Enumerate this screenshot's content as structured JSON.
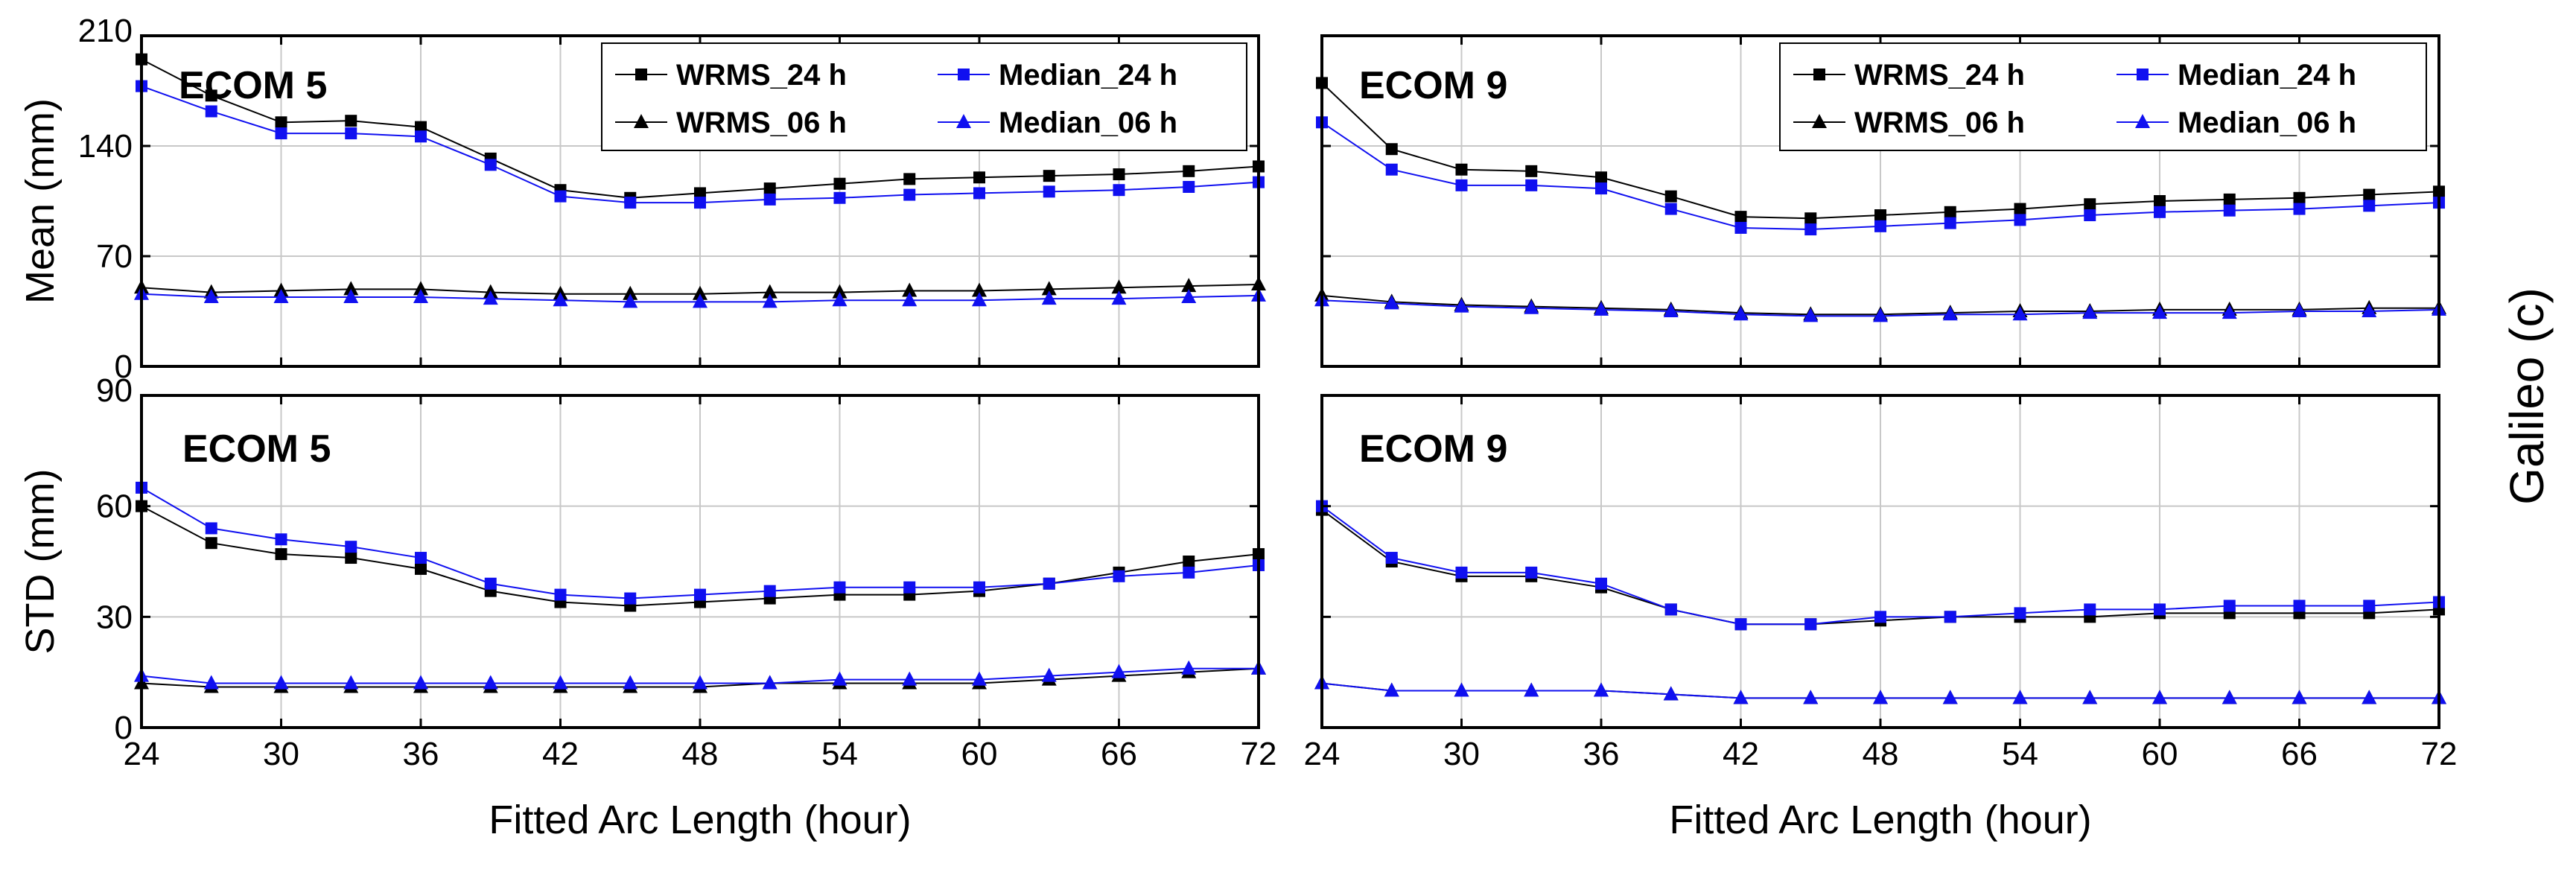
{
  "chart_data": [
    {
      "type": "line",
      "title": "ECOM 5",
      "xlabel": "",
      "ylabel": "Mean (mm)",
      "xlim": [
        24,
        72
      ],
      "ylim": [
        0,
        210
      ],
      "xticks": [
        24,
        30,
        36,
        42,
        48,
        54,
        60,
        66,
        72
      ],
      "yticks": [
        0,
        70,
        140,
        210
      ],
      "x": [
        24,
        27,
        30,
        33,
        36,
        39,
        42,
        45,
        48,
        51,
        54,
        57,
        60,
        63,
        66,
        69,
        72
      ],
      "series": [
        {
          "name": "WRMS_24 h",
          "color": "#000000",
          "marker": "square",
          "values": [
            195,
            172,
            155,
            156,
            152,
            132,
            112,
            107,
            110,
            113,
            116,
            119,
            120,
            121,
            122,
            124,
            127
          ]
        },
        {
          "name": "Median_24 h",
          "color": "#1010f0",
          "marker": "square",
          "values": [
            178,
            162,
            148,
            148,
            146,
            128,
            108,
            104,
            104,
            106,
            107,
            109,
            110,
            111,
            112,
            114,
            117
          ]
        },
        {
          "name": "WRMS_06 h",
          "color": "#000000",
          "marker": "triangle",
          "values": [
            50,
            47,
            48,
            49,
            49,
            47,
            46,
            46,
            46,
            47,
            47,
            48,
            48,
            49,
            50,
            51,
            52
          ]
        },
        {
          "name": "Median_06 h",
          "color": "#1010f0",
          "marker": "triangle",
          "values": [
            46,
            44,
            44,
            44,
            44,
            43,
            42,
            41,
            41,
            41,
            42,
            42,
            42,
            43,
            43,
            44,
            45
          ]
        }
      ]
    },
    {
      "type": "line",
      "title": "ECOM 9",
      "xlabel": "",
      "ylabel": "",
      "xlim": [
        24,
        72
      ],
      "ylim": [
        0,
        210
      ],
      "xticks": [
        24,
        30,
        36,
        42,
        48,
        54,
        60,
        66,
        72
      ],
      "yticks": [
        0,
        70,
        140,
        210
      ],
      "x": [
        24,
        27,
        30,
        33,
        36,
        39,
        42,
        45,
        48,
        51,
        54,
        57,
        60,
        63,
        66,
        69,
        72
      ],
      "series": [
        {
          "name": "WRMS_24 h",
          "color": "#000000",
          "marker": "square",
          "values": [
            180,
            138,
            125,
            124,
            120,
            108,
            95,
            94,
            96,
            98,
            100,
            103,
            105,
            106,
            107,
            109,
            111
          ]
        },
        {
          "name": "Median_24 h",
          "color": "#1010f0",
          "marker": "square",
          "values": [
            155,
            125,
            115,
            115,
            113,
            100,
            88,
            87,
            89,
            91,
            93,
            96,
            98,
            99,
            100,
            102,
            104
          ]
        },
        {
          "name": "WRMS_06 h",
          "color": "#000000",
          "marker": "triangle",
          "values": [
            45,
            41,
            39,
            38,
            37,
            36,
            34,
            33,
            33,
            34,
            35,
            35,
            36,
            36,
            36,
            37,
            37
          ]
        },
        {
          "name": "Median_06 h",
          "color": "#1010f0",
          "marker": "triangle",
          "values": [
            42,
            40,
            38,
            37,
            36,
            35,
            33,
            32,
            32,
            33,
            33,
            34,
            34,
            34,
            35,
            35,
            36
          ]
        }
      ]
    },
    {
      "type": "line",
      "title": "ECOM 5",
      "xlabel": "Fitted Arc Length (hour)",
      "ylabel": "STD (mm)",
      "xlim": [
        24,
        72
      ],
      "ylim": [
        0,
        90
      ],
      "xticks": [
        24,
        30,
        36,
        42,
        48,
        54,
        60,
        66,
        72
      ],
      "yticks": [
        0,
        30,
        60,
        90
      ],
      "x": [
        24,
        27,
        30,
        33,
        36,
        39,
        42,
        45,
        48,
        51,
        54,
        57,
        60,
        63,
        66,
        69,
        72
      ],
      "series": [
        {
          "name": "WRMS_24 h",
          "color": "#000000",
          "marker": "square",
          "values": [
            60,
            50,
            47,
            46,
            43,
            37,
            34,
            33,
            34,
            35,
            36,
            36,
            37,
            39,
            42,
            45,
            47
          ]
        },
        {
          "name": "Median_24 h",
          "color": "#1010f0",
          "marker": "square",
          "values": [
            65,
            54,
            51,
            49,
            46,
            39,
            36,
            35,
            36,
            37,
            38,
            38,
            38,
            39,
            41,
            42,
            44
          ]
        },
        {
          "name": "WRMS_06 h",
          "color": "#000000",
          "marker": "triangle",
          "values": [
            12,
            11,
            11,
            11,
            11,
            11,
            11,
            11,
            11,
            12,
            12,
            12,
            12,
            13,
            14,
            15,
            16
          ]
        },
        {
          "name": "Median_06 h",
          "color": "#1010f0",
          "marker": "triangle",
          "values": [
            14,
            12,
            12,
            12,
            12,
            12,
            12,
            12,
            12,
            12,
            13,
            13,
            13,
            14,
            15,
            16,
            16
          ]
        }
      ]
    },
    {
      "type": "line",
      "title": "ECOM 9",
      "xlabel": "Fitted Arc Length (hour)",
      "ylabel": "",
      "xlim": [
        24,
        72
      ],
      "ylim": [
        0,
        90
      ],
      "xticks": [
        24,
        30,
        36,
        42,
        48,
        54,
        60,
        66,
        72
      ],
      "yticks": [
        0,
        30,
        60,
        90
      ],
      "x": [
        24,
        27,
        30,
        33,
        36,
        39,
        42,
        45,
        48,
        51,
        54,
        57,
        60,
        63,
        66,
        69,
        72
      ],
      "series": [
        {
          "name": "WRMS_24 h",
          "color": "#000000",
          "marker": "square",
          "values": [
            59,
            45,
            41,
            41,
            38,
            32,
            28,
            28,
            29,
            30,
            30,
            30,
            31,
            31,
            31,
            31,
            32
          ]
        },
        {
          "name": "Median_24 h",
          "color": "#1010f0",
          "marker": "square",
          "values": [
            60,
            46,
            42,
            42,
            39,
            32,
            28,
            28,
            30,
            30,
            31,
            32,
            32,
            33,
            33,
            33,
            34
          ]
        },
        {
          "name": "WRMS_06 h",
          "color": "#000000",
          "marker": "triangle",
          "values": [
            12,
            10,
            10,
            10,
            10,
            9,
            8,
            8,
            8,
            8,
            8,
            8,
            8,
            8,
            8,
            8,
            8
          ]
        },
        {
          "name": "Median_06 h",
          "color": "#1010f0",
          "marker": "triangle",
          "values": [
            12,
            10,
            10,
            10,
            10,
            9,
            8,
            8,
            8,
            8,
            8,
            8,
            8,
            8,
            8,
            8,
            8
          ]
        }
      ]
    }
  ],
  "figure": {
    "side_label": "Galileo (c)",
    "legend_labels": [
      "WRMS_24 h",
      "Median_24 h",
      "WRMS_06 h",
      "Median_06 h"
    ]
  }
}
